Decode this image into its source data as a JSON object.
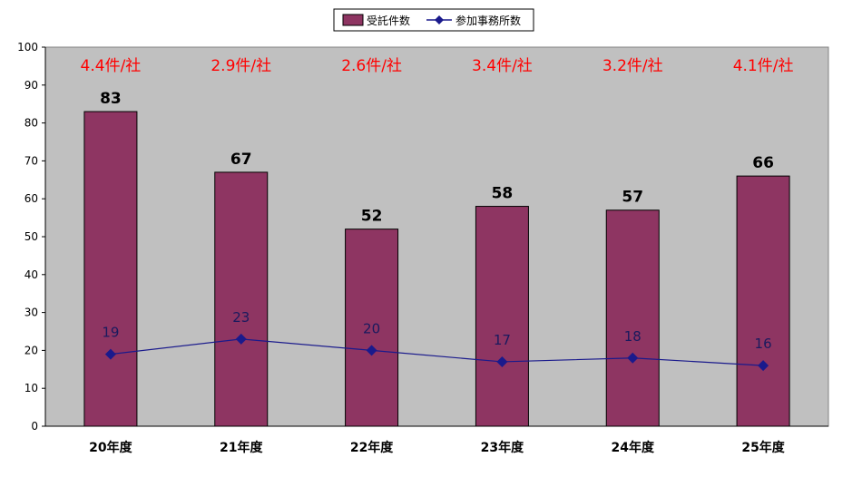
{
  "chart_data": {
    "type": "bar",
    "categories": [
      "20年度",
      "21年度",
      "22年度",
      "23年度",
      "24年度",
      "25年度"
    ],
    "series": [
      {
        "name": "受託件数",
        "type": "bar",
        "values": [
          83,
          67,
          52,
          58,
          57,
          66
        ],
        "color": "#8e3562"
      },
      {
        "name": "参加事務所数",
        "type": "line",
        "values": [
          19,
          23,
          20,
          17,
          18,
          16
        ],
        "color": "#1a1a8c"
      }
    ],
    "annotations": [
      "4.4件/社",
      "2.9件/社",
      "2.6件/社",
      "3.4件/社",
      "3.2件/社",
      "4.1件/社"
    ],
    "annotation_color": "#ff0000",
    "plot_background": "#c0c0c0",
    "ylim": [
      0,
      100
    ],
    "yticks": [
      0,
      10,
      20,
      30,
      40,
      50,
      60,
      70,
      80,
      90,
      100
    ],
    "legend_position": "top-center",
    "grid": false,
    "title": "",
    "xlabel": "",
    "ylabel": ""
  }
}
